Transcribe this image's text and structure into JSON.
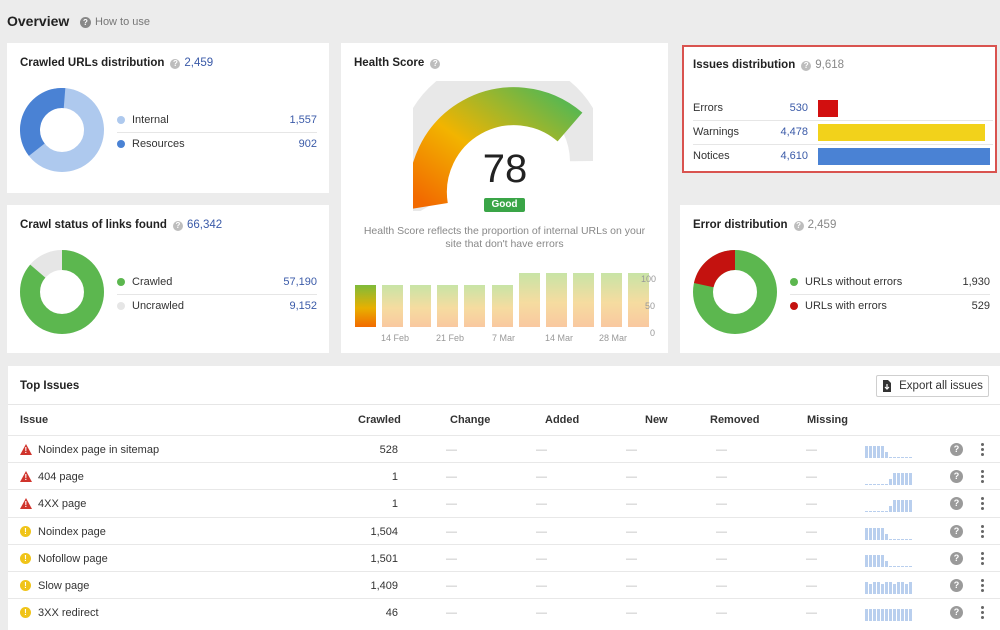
{
  "header": {
    "title": "Overview",
    "how_to_use": "How to use"
  },
  "crawled_urls": {
    "title": "Crawled URLs distribution",
    "total": "2,459",
    "items": [
      {
        "label": "Internal",
        "value": "1,557",
        "color": "#aec9ee"
      },
      {
        "label": "Resources",
        "value": "902",
        "color": "#4a82d4"
      }
    ]
  },
  "crawl_status": {
    "title": "Crawl status of links found",
    "total": "66,342",
    "items": [
      {
        "label": "Crawled",
        "value": "57,190",
        "color": "#5cb74f"
      },
      {
        "label": "Uncrawled",
        "value": "9,152",
        "color": "#e6e6e6"
      }
    ]
  },
  "health": {
    "title": "Health Score",
    "score": "78",
    "badge": "Good",
    "description": "Health Score reflects the proportion of internal URLs on your site that don't have errors",
    "y_ticks": [
      "100",
      "50",
      "0"
    ],
    "x_ticks": [
      "14 Feb",
      "21 Feb",
      "7 Mar",
      "14 Mar",
      "28 Mar"
    ],
    "bars": [
      78,
      78,
      78,
      78,
      78,
      78,
      100,
      100,
      100,
      100,
      100
    ]
  },
  "issues_dist": {
    "title": "Issues distribution",
    "total": "9,618",
    "items": [
      {
        "label": "Errors",
        "value": "530",
        "color": "#d20f0f",
        "share": 0.115
      },
      {
        "label": "Warnings",
        "value": "4,478",
        "color": "#f2d21b",
        "share": 0.971
      },
      {
        "label": "Notices",
        "value": "4,610",
        "color": "#4a82d4",
        "share": 1.0
      }
    ]
  },
  "error_dist": {
    "title": "Error distribution",
    "total": "2,459",
    "items": [
      {
        "label": "URLs without errors",
        "value": "1,930",
        "color": "#5cb74f"
      },
      {
        "label": "URLs with errors",
        "value": "529",
        "color": "#c4120f"
      }
    ]
  },
  "top_issues": {
    "title": "Top Issues",
    "export_label": "Export all issues",
    "columns": [
      "Issue",
      "Crawled",
      "Change",
      "Added",
      "New",
      "Removed",
      "Missing"
    ],
    "dash": "—",
    "rows": [
      {
        "name": "Noindex page in sitemap",
        "crawled": "528",
        "severity": "error"
      },
      {
        "name": "404 page",
        "crawled": "1",
        "severity": "error"
      },
      {
        "name": "4XX page",
        "crawled": "1",
        "severity": "error"
      },
      {
        "name": "Noindex page",
        "crawled": "1,504",
        "severity": "warning"
      },
      {
        "name": "Nofollow page",
        "crawled": "1,501",
        "severity": "warning"
      },
      {
        "name": "Slow page",
        "crawled": "1,409",
        "severity": "warning"
      },
      {
        "name": "3XX redirect",
        "crawled": "46",
        "severity": "warning"
      }
    ]
  }
}
